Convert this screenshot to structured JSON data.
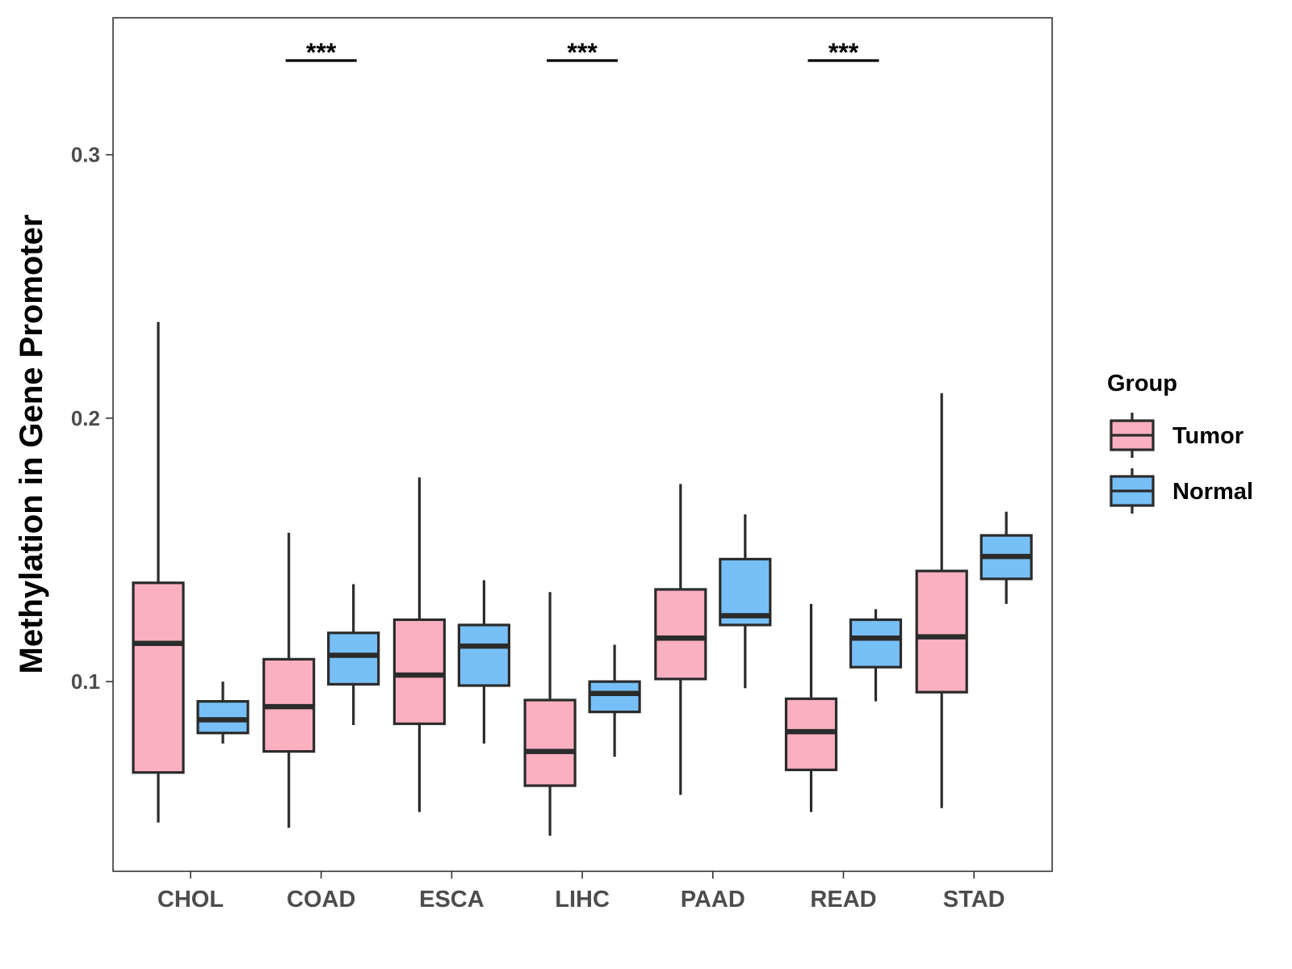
{
  "chart_data": {
    "type": "boxplot",
    "title": "",
    "xlabel": "",
    "ylabel": "Methylation in Gene Promoter",
    "ylim": [
      0.028,
      0.352
    ],
    "yticks": [
      0.1,
      0.2,
      0.3
    ],
    "ytick_labels": [
      "0.1",
      "0.2",
      "0.3"
    ],
    "categories": [
      "CHOL",
      "COAD",
      "ESCA",
      "LIHC",
      "PAAD",
      "READ",
      "STAD"
    ],
    "legend": {
      "title": "Group",
      "position": "right",
      "entries": [
        {
          "name": "Tumor",
          "color": "#FAB0C1"
        },
        {
          "name": "Normal",
          "color": "#77C0F7"
        }
      ]
    },
    "series": [
      {
        "name": "Tumor",
        "color": "#FAB0C1",
        "boxes": [
          {
            "category": "CHOL",
            "whisker_low": 0.0465,
            "q1": 0.0655,
            "median": 0.1145,
            "q3": 0.1375,
            "whisker_high": 0.2365
          },
          {
            "category": "COAD",
            "whisker_low": 0.0445,
            "q1": 0.0735,
            "median": 0.0905,
            "q3": 0.1085,
            "whisker_high": 0.1565
          },
          {
            "category": "ESCA",
            "whisker_low": 0.0505,
            "q1": 0.084,
            "median": 0.1025,
            "q3": 0.1235,
            "whisker_high": 0.1775
          },
          {
            "category": "LIHC",
            "whisker_low": 0.0415,
            "q1": 0.0605,
            "median": 0.0735,
            "q3": 0.093,
            "whisker_high": 0.134
          },
          {
            "category": "PAAD",
            "whisker_low": 0.057,
            "q1": 0.101,
            "median": 0.1165,
            "q3": 0.135,
            "whisker_high": 0.175
          },
          {
            "category": "READ",
            "whisker_low": 0.0505,
            "q1": 0.0665,
            "median": 0.081,
            "q3": 0.0935,
            "whisker_high": 0.1295
          },
          {
            "category": "STAD",
            "whisker_low": 0.052,
            "q1": 0.096,
            "median": 0.117,
            "q3": 0.142,
            "whisker_high": 0.2095
          }
        ]
      },
      {
        "name": "Normal",
        "color": "#77C0F7",
        "boxes": [
          {
            "category": "CHOL",
            "whisker_low": 0.0765,
            "q1": 0.0805,
            "median": 0.0855,
            "q3": 0.0925,
            "whisker_high": 0.1
          },
          {
            "category": "COAD",
            "whisker_low": 0.0835,
            "q1": 0.099,
            "median": 0.11,
            "q3": 0.1185,
            "whisker_high": 0.137
          },
          {
            "category": "ESCA",
            "whisker_low": 0.0765,
            "q1": 0.0985,
            "median": 0.1135,
            "q3": 0.1215,
            "whisker_high": 0.1385
          },
          {
            "category": "LIHC",
            "whisker_low": 0.0715,
            "q1": 0.0885,
            "median": 0.0955,
            "q3": 0.1,
            "whisker_high": 0.114
          },
          {
            "category": "PAAD",
            "whisker_low": 0.0975,
            "q1": 0.1215,
            "median": 0.125,
            "q3": 0.1465,
            "whisker_high": 0.1635
          },
          {
            "category": "READ",
            "whisker_low": 0.0925,
            "q1": 0.1055,
            "median": 0.1165,
            "q3": 0.1235,
            "whisker_high": 0.1275
          },
          {
            "category": "STAD",
            "whisker_low": 0.1295,
            "q1": 0.139,
            "median": 0.1475,
            "q3": 0.1555,
            "whisker_high": 0.1645
          }
        ]
      }
    ],
    "annotations": [
      {
        "category": "COAD",
        "label": "***"
      },
      {
        "category": "LIHC",
        "label": "***"
      },
      {
        "category": "READ",
        "label": "***"
      }
    ]
  }
}
